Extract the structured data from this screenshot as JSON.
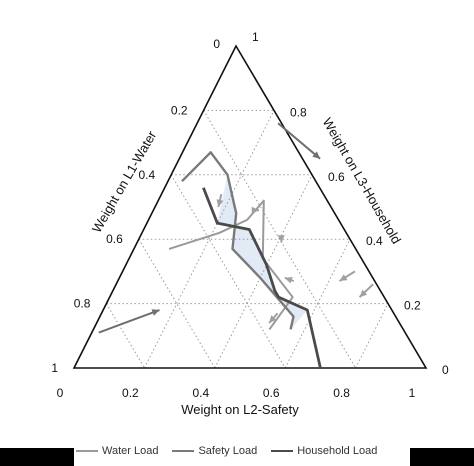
{
  "chart_data": {
    "type": "line",
    "plot_kind": "ternary",
    "title": "",
    "axes": {
      "left": {
        "label": "Weight on L1-Water",
        "ticks": [
          "0",
          "0.2",
          "0.4",
          "0.6",
          "0.8",
          "1"
        ]
      },
      "bottom": {
        "label": "Weight on L2-Safety",
        "ticks": [
          "0",
          "0.2",
          "0.4",
          "0.6",
          "0.8",
          "1"
        ]
      },
      "right": {
        "label": "Weight on L3-Household",
        "ticks": [
          "1",
          "0.8",
          "0.6",
          "0.4",
          "0.2",
          "0"
        ]
      }
    },
    "grid": true,
    "legend_position": "bottom",
    "series": [
      {
        "name": "Water Load",
        "color": "#9a9a9a",
        "points": [
          [
            0.1,
            0.37
          ],
          [
            0.22,
            0.42
          ],
          [
            0.28,
            0.46
          ],
          [
            0.3,
            0.52
          ],
          [
            0.38,
            0.34
          ],
          [
            0.52,
            0.22
          ],
          [
            0.5,
            0.12
          ]
        ]
      },
      {
        "name": "Safety Load",
        "color": "#7a7a7a",
        "points": [
          [
            0.04,
            0.58
          ],
          [
            0.08,
            0.67
          ],
          [
            0.16,
            0.6
          ],
          [
            0.24,
            0.48
          ],
          [
            0.28,
            0.37
          ],
          [
            0.4,
            0.28
          ],
          [
            0.55,
            0.16
          ],
          [
            0.56,
            0.12
          ]
        ]
      },
      {
        "name": "Household Load",
        "color": "#4a4a4a",
        "points": [
          [
            0.11,
            0.56
          ],
          [
            0.2,
            0.45
          ],
          [
            0.3,
            0.43
          ],
          [
            0.4,
            0.32
          ],
          [
            0.46,
            0.24
          ],
          [
            0.48,
            0.22
          ],
          [
            0.58,
            0.18
          ],
          [
            0.7,
            0.0
          ]
        ]
      }
    ],
    "shaded_region": {
      "color": "#dde6f5"
    }
  },
  "legend": {
    "items": [
      {
        "label": "Water Load",
        "color": "#9a9a9a"
      },
      {
        "label": "Safety Load",
        "color": "#7a7a7a"
      },
      {
        "label": "Household Load",
        "color": "#4a4a4a"
      }
    ]
  }
}
